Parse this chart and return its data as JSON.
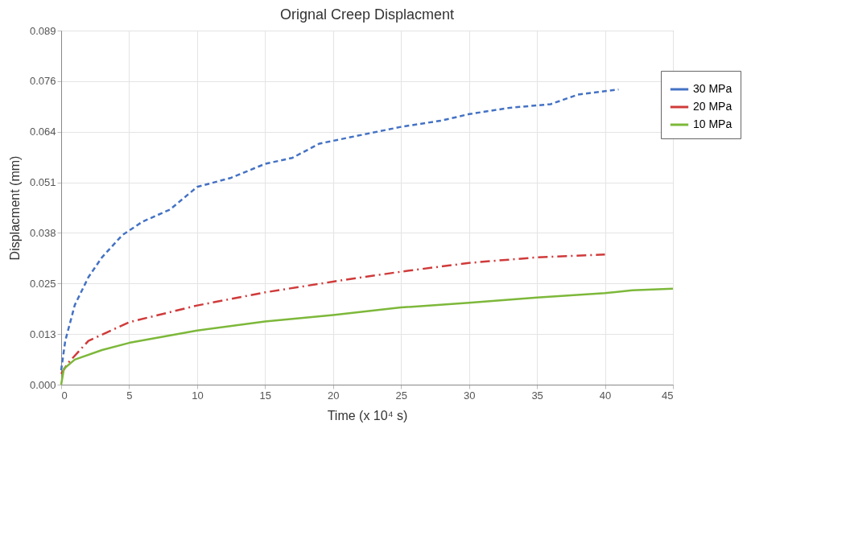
{
  "chart_data": {
    "type": "line",
    "title": "Orignal Creep Displacment",
    "xlabel": "Time (x 10⁴ s)",
    "ylabel": "Displacment (mm)",
    "xlim": [
      0,
      45
    ],
    "xticks": [
      0,
      5,
      10,
      15,
      20,
      25,
      30,
      35,
      40,
      45
    ],
    "ylim": [
      0,
      0.089
    ],
    "yticks": [
      {
        "value": 0,
        "label": "0.000"
      },
      {
        "value": 0.01271,
        "label": "0.013"
      },
      {
        "value": 0.02543,
        "label": "0.025"
      },
      {
        "value": 0.03814,
        "label": "0.038"
      },
      {
        "value": 0.05086,
        "label": "0.051"
      },
      {
        "value": 0.06357,
        "label": "0.064"
      },
      {
        "value": 0.07629,
        "label": "0.076"
      },
      {
        "value": 0.089,
        "label": "0.089"
      }
    ],
    "grid": true,
    "legend": "top right",
    "series": [
      {
        "name": "30 MPa",
        "color": "#4472c4",
        "line_style": "dashed",
        "x": [
          0,
          0.3,
          1,
          2,
          3,
          4.5,
          6,
          8,
          10,
          12.5,
          15,
          17,
          19,
          21,
          25,
          28,
          30,
          33,
          36,
          38,
          41
        ],
        "values": [
          0.0036,
          0.011,
          0.02,
          0.027,
          0.032,
          0.0376,
          0.041,
          0.044,
          0.0497,
          0.052,
          0.0555,
          0.057,
          0.0606,
          0.062,
          0.0648,
          0.0664,
          0.068,
          0.0696,
          0.0705,
          0.0729,
          0.0742
        ]
      },
      {
        "name": "20 MPa",
        "color": "#d03a3a",
        "line_style": "dashdot",
        "x": [
          0,
          0.5,
          2,
          5,
          10,
          15,
          20,
          25,
          30,
          35,
          40
        ],
        "values": [
          0.0027,
          0.0054,
          0.011,
          0.0157,
          0.0199,
          0.0232,
          0.0259,
          0.0284,
          0.0306,
          0.032,
          0.0327
        ]
      },
      {
        "name": "10 MPa",
        "color": "#7db83a",
        "line_style": "solid",
        "x": [
          0,
          0.2,
          1,
          3,
          5,
          10,
          15,
          20,
          25,
          30,
          35,
          40,
          42,
          45
        ],
        "values": [
          0,
          0.004,
          0.0063,
          0.0087,
          0.0105,
          0.0136,
          0.0159,
          0.0175,
          0.0194,
          0.0206,
          0.0219,
          0.023,
          0.0237,
          0.0241
        ]
      }
    ]
  }
}
